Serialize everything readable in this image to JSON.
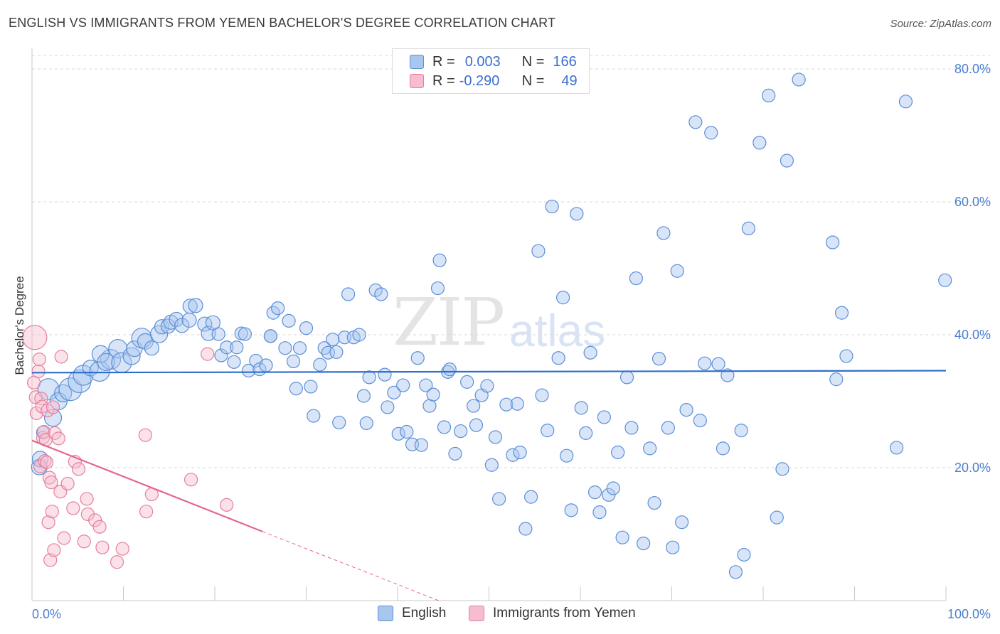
{
  "title": "ENGLISH VS IMMIGRANTS FROM YEMEN BACHELOR'S DEGREE CORRELATION CHART",
  "source": "Source: ZipAtlas.com",
  "watermark": {
    "zip": "ZIP",
    "atlas": "atlas"
  },
  "legend": {
    "rows": [
      {
        "r_label": "R =",
        "r_value": "0.003",
        "n_label": "N =",
        "n_value": "166",
        "color": "#a9c6ef",
        "edge": "#5b8fd6"
      },
      {
        "r_label": "R =",
        "r_value": "-0.290",
        "n_label": "N =",
        "n_value": "49",
        "color": "#f7bccd",
        "edge": "#e57f9f"
      }
    ]
  },
  "bottom_legend": [
    {
      "label": "English",
      "color": "#a9c6ef",
      "edge": "#5b8fd6"
    },
    {
      "label": "Immigrants from Yemen",
      "color": "#f7bccd",
      "edge": "#e57f9f"
    }
  ],
  "chart_data": {
    "type": "scatter",
    "title": "ENGLISH VS IMMIGRANTS FROM YEMEN BACHELOR'S DEGREE CORRELATION CHART",
    "xlabel": "",
    "ylabel": "Bachelor's Degree",
    "xlim": [
      0,
      100
    ],
    "ylim": [
      0,
      80
    ],
    "x_tick_labels": [
      {
        "value": 0,
        "label": "0.0%"
      },
      {
        "value": 100,
        "label": "100.0%"
      }
    ],
    "y_tick_labels": [
      {
        "value": 20,
        "label": "20.0%"
      },
      {
        "value": 40,
        "label": "40.0%"
      },
      {
        "value": 60,
        "label": "60.0%"
      },
      {
        "value": 80,
        "label": "80.0%"
      }
    ],
    "series": [
      {
        "name": "English",
        "color": "#a9c6ef",
        "edge": "#5b8fd6",
        "trend": {
          "x0": 0,
          "y0": 34.3,
          "x1": 100,
          "y1": 34.6
        },
        "points": [
          [
            0.8,
            20.1,
            11
          ],
          [
            0.9,
            21.3,
            11
          ],
          [
            1.2,
            25.3,
            9
          ],
          [
            2.3,
            27.5,
            12
          ],
          [
            1.8,
            31.8,
            15
          ],
          [
            2.9,
            30.0,
            12
          ],
          [
            3.4,
            31.2,
            12
          ],
          [
            4.2,
            31.8,
            16
          ],
          [
            5.2,
            33.0,
            16
          ],
          [
            5.6,
            33.9,
            14
          ],
          [
            6.4,
            35.0,
            11
          ],
          [
            7.4,
            34.5,
            14
          ],
          [
            8.6,
            36.3,
            14
          ],
          [
            7.5,
            37.1,
            12
          ],
          [
            8.1,
            35.9,
            12
          ],
          [
            9.4,
            37.9,
            13
          ],
          [
            9.8,
            35.8,
            14
          ],
          [
            10.9,
            36.8,
            12
          ],
          [
            11.2,
            37.9,
            11
          ],
          [
            12.0,
            39.5,
            14
          ],
          [
            12.4,
            39.0,
            11
          ],
          [
            13.1,
            38.0,
            10
          ],
          [
            13.9,
            40.1,
            12
          ],
          [
            14.2,
            41.2,
            10
          ],
          [
            14.9,
            41.3,
            10
          ],
          [
            15.2,
            41.9,
            10
          ],
          [
            15.8,
            42.3,
            10
          ],
          [
            16.4,
            41.4,
            10
          ],
          [
            17.2,
            42.2,
            10
          ],
          [
            17.3,
            44.3,
            10
          ],
          [
            17.9,
            44.4,
            10
          ],
          [
            18.9,
            41.6,
            10
          ],
          [
            19.3,
            40.2,
            10
          ],
          [
            19.8,
            41.8,
            10
          ],
          [
            20.4,
            40.1,
            9
          ],
          [
            20.7,
            36.9,
            9
          ],
          [
            21.3,
            38.1,
            9
          ],
          [
            22.1,
            35.9,
            9
          ],
          [
            22.4,
            38.1,
            9
          ],
          [
            22.9,
            40.2,
            9
          ],
          [
            23.3,
            40.1,
            9
          ],
          [
            23.7,
            34.6,
            9
          ],
          [
            24.5,
            36.1,
            9
          ],
          [
            24.9,
            34.8,
            9
          ],
          [
            25.6,
            35.4,
            9
          ],
          [
            26.1,
            39.8,
            9
          ],
          [
            26.1,
            39.8,
            9
          ],
          [
            26.4,
            43.3,
            9
          ],
          [
            26.9,
            44.0,
            9
          ],
          [
            27.7,
            38.0,
            9
          ],
          [
            28.1,
            42.1,
            9
          ],
          [
            28.6,
            36.0,
            9
          ],
          [
            28.9,
            31.9,
            9
          ],
          [
            29.3,
            38.0,
            9
          ],
          [
            30.0,
            41.0,
            9
          ],
          [
            30.5,
            32.2,
            9
          ],
          [
            30.8,
            27.8,
            9
          ],
          [
            31.5,
            35.5,
            9
          ],
          [
            32.0,
            38.0,
            9
          ],
          [
            32.4,
            37.3,
            9
          ],
          [
            32.9,
            39.3,
            9
          ],
          [
            33.3,
            37.4,
            9
          ],
          [
            33.6,
            26.8,
            9
          ],
          [
            34.2,
            39.6,
            9
          ],
          [
            34.6,
            46.1,
            9
          ],
          [
            35.2,
            39.6,
            9
          ],
          [
            35.8,
            40.0,
            9
          ],
          [
            36.3,
            30.8,
            9
          ],
          [
            36.6,
            26.7,
            9
          ],
          [
            36.9,
            33.6,
            9
          ],
          [
            37.6,
            46.7,
            9
          ],
          [
            38.2,
            46.1,
            9
          ],
          [
            38.6,
            34.0,
            9
          ],
          [
            38.9,
            29.1,
            9
          ],
          [
            39.6,
            31.3,
            9
          ],
          [
            40.1,
            25.1,
            9
          ],
          [
            40.6,
            32.4,
            9
          ],
          [
            41.0,
            25.4,
            9
          ],
          [
            41.6,
            23.5,
            9
          ],
          [
            42.2,
            36.5,
            9
          ],
          [
            42.6,
            23.4,
            9
          ],
          [
            43.1,
            32.4,
            9
          ],
          [
            43.5,
            29.3,
            9
          ],
          [
            43.9,
            31.0,
            9
          ],
          [
            44.4,
            47.0,
            9
          ],
          [
            44.6,
            51.2,
            9
          ],
          [
            45.1,
            26.1,
            9
          ],
          [
            45.5,
            34.4,
            9
          ],
          [
            45.7,
            34.8,
            9
          ],
          [
            46.3,
            22.1,
            9
          ],
          [
            46.9,
            25.5,
            9
          ],
          [
            47.6,
            32.9,
            9
          ],
          [
            48.3,
            29.3,
            9
          ],
          [
            48.6,
            26.4,
            9
          ],
          [
            49.2,
            30.9,
            9
          ],
          [
            49.8,
            32.3,
            9
          ],
          [
            50.3,
            20.4,
            9
          ],
          [
            50.7,
            24.6,
            9
          ],
          [
            51.1,
            15.3,
            9
          ],
          [
            51.9,
            29.5,
            9
          ],
          [
            52.6,
            21.9,
            9
          ],
          [
            53.1,
            29.6,
            9
          ],
          [
            53.4,
            22.3,
            9
          ],
          [
            54.0,
            10.8,
            9
          ],
          [
            54.6,
            15.6,
            9
          ],
          [
            55.4,
            52.6,
            9
          ],
          [
            55.8,
            30.9,
            9
          ],
          [
            56.4,
            25.6,
            9
          ],
          [
            56.9,
            59.3,
            9
          ],
          [
            57.6,
            36.5,
            9
          ],
          [
            58.1,
            45.6,
            9
          ],
          [
            58.5,
            21.8,
            9
          ],
          [
            59.0,
            13.6,
            9
          ],
          [
            59.6,
            58.2,
            9
          ],
          [
            60.1,
            29.0,
            9
          ],
          [
            60.6,
            25.2,
            9
          ],
          [
            61.1,
            37.3,
            9
          ],
          [
            61.6,
            16.3,
            9
          ],
          [
            62.1,
            13.3,
            9
          ],
          [
            62.6,
            27.6,
            9
          ],
          [
            63.1,
            15.9,
            9
          ],
          [
            63.6,
            16.9,
            9
          ],
          [
            64.1,
            22.3,
            9
          ],
          [
            64.6,
            9.5,
            9
          ],
          [
            65.1,
            33.6,
            9
          ],
          [
            65.6,
            26.0,
            9
          ],
          [
            66.1,
            48.5,
            9
          ],
          [
            66.9,
            8.6,
            9
          ],
          [
            67.6,
            22.9,
            9
          ],
          [
            68.1,
            14.7,
            9
          ],
          [
            68.6,
            36.4,
            9
          ],
          [
            69.1,
            55.3,
            9
          ],
          [
            69.6,
            26.0,
            9
          ],
          [
            70.1,
            8.0,
            9
          ],
          [
            70.6,
            49.6,
            9
          ],
          [
            71.1,
            11.8,
            9
          ],
          [
            71.6,
            28.7,
            9
          ],
          [
            72.6,
            72.0,
            9
          ],
          [
            73.1,
            27.1,
            9
          ],
          [
            73.6,
            35.7,
            9
          ],
          [
            74.3,
            70.4,
            9
          ],
          [
            75.1,
            35.6,
            9
          ],
          [
            75.6,
            22.9,
            9
          ],
          [
            76.1,
            33.9,
            9
          ],
          [
            77.0,
            4.3,
            9
          ],
          [
            77.6,
            25.6,
            9
          ],
          [
            77.9,
            6.9,
            9
          ],
          [
            78.4,
            56.0,
            9
          ],
          [
            79.6,
            68.9,
            9
          ],
          [
            80.6,
            76.0,
            9
          ],
          [
            81.5,
            12.5,
            9
          ],
          [
            82.1,
            19.8,
            9
          ],
          [
            82.6,
            66.2,
            9
          ],
          [
            83.9,
            78.4,
            9
          ],
          [
            87.6,
            53.9,
            9
          ],
          [
            88.0,
            33.3,
            9
          ],
          [
            88.6,
            43.3,
            9
          ],
          [
            89.1,
            36.8,
            9
          ],
          [
            94.6,
            23.0,
            9
          ],
          [
            95.6,
            75.1,
            9
          ],
          [
            99.9,
            48.2,
            9
          ]
        ]
      },
      {
        "name": "Immigrants from Yemen",
        "color": "#f7bccd",
        "edge": "#e57f9f",
        "trend": {
          "x0": 0,
          "y0": 24.1,
          "x1": 25.2,
          "y1": 10.4,
          "dashed_to_x": 44.5
        },
        "points": [
          [
            0.3,
            39.6,
            17
          ],
          [
            0.2,
            32.8,
            9
          ],
          [
            0.4,
            30.6,
            9
          ],
          [
            0.5,
            28.2,
            9
          ],
          [
            0.7,
            34.5,
            9
          ],
          [
            0.8,
            36.3,
            9
          ],
          [
            0.9,
            20.2,
            9
          ],
          [
            1.0,
            30.4,
            9
          ],
          [
            1.1,
            29.2,
            9
          ],
          [
            1.2,
            24.5,
            9
          ],
          [
            1.3,
            25.4,
            9
          ],
          [
            1.4,
            21.0,
            9
          ],
          [
            1.5,
            24.2,
            9
          ],
          [
            1.6,
            20.8,
            9
          ],
          [
            1.7,
            28.6,
            9
          ],
          [
            1.8,
            11.8,
            9
          ],
          [
            1.9,
            18.5,
            9
          ],
          [
            2.0,
            6.1,
            9
          ],
          [
            2.1,
            17.8,
            9
          ],
          [
            2.2,
            13.4,
            9
          ],
          [
            2.3,
            29.1,
            9
          ],
          [
            2.4,
            7.6,
            9
          ],
          [
            2.5,
            25.2,
            9
          ],
          [
            2.9,
            24.4,
            9
          ],
          [
            3.1,
            16.4,
            9
          ],
          [
            3.2,
            36.7,
            9
          ],
          [
            3.5,
            9.4,
            9
          ],
          [
            3.9,
            17.6,
            9
          ],
          [
            4.5,
            13.9,
            9
          ],
          [
            4.7,
            20.9,
            9
          ],
          [
            5.1,
            19.8,
            9
          ],
          [
            5.7,
            8.9,
            9
          ],
          [
            6.0,
            15.3,
            9
          ],
          [
            6.1,
            13.0,
            9
          ],
          [
            6.9,
            12.1,
            9
          ],
          [
            7.4,
            11.1,
            9
          ],
          [
            7.7,
            8.0,
            9
          ],
          [
            9.3,
            5.8,
            9
          ],
          [
            9.9,
            7.8,
            9
          ],
          [
            12.4,
            24.9,
            9
          ],
          [
            12.5,
            13.4,
            9
          ],
          [
            13.1,
            16.0,
            9
          ],
          [
            17.4,
            18.2,
            9
          ],
          [
            19.2,
            37.1,
            9
          ],
          [
            21.3,
            14.4,
            9
          ]
        ]
      }
    ]
  }
}
